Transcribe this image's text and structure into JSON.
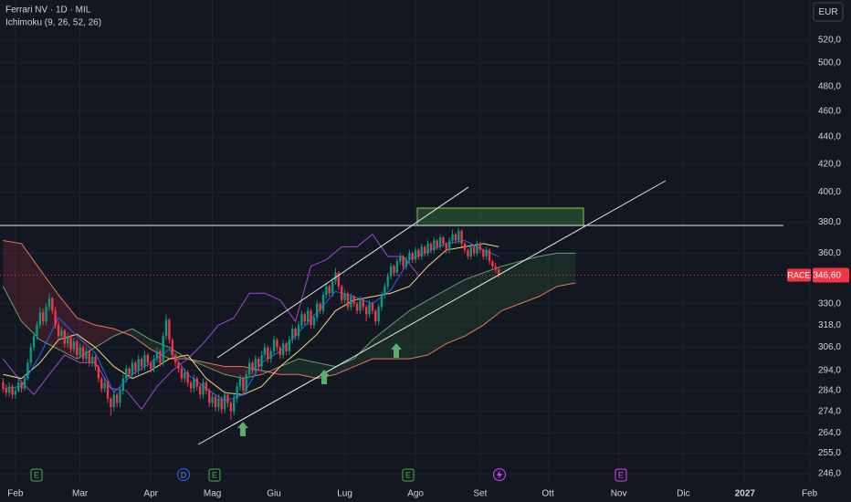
{
  "chart_data": {
    "type": "candlestick",
    "title": "Ferrari NV · 1D · MIL",
    "subtitle": "Ichimoku (9, 26, 52, 26)",
    "currency": "EUR",
    "symbol": "RACE",
    "last_price": {
      "value": 346.6,
      "label": "346,60"
    },
    "log": true,
    "grid": true,
    "up_color": "#089981",
    "down_color": "#f23645",
    "xlim": [
      -1,
      263
    ],
    "ylim": [
      241.8,
      557.4
    ],
    "xticks": [
      {
        "value": 4,
        "label": "Feb"
      },
      {
        "value": 25,
        "label": "Mar"
      },
      {
        "value": 48,
        "label": "Apr"
      },
      {
        "value": 68,
        "label": "Mag"
      },
      {
        "value": 88,
        "label": "Giu"
      },
      {
        "value": 111,
        "label": "Lug"
      },
      {
        "value": 134,
        "label": "Ago"
      },
      {
        "value": 155,
        "label": "Set"
      },
      {
        "value": 177,
        "label": "Ott"
      },
      {
        "value": 200,
        "label": "Nov"
      },
      {
        "value": 221,
        "label": "Dic"
      },
      {
        "value": 241,
        "label": "2027"
      },
      {
        "value": 262,
        "label": "Feb"
      }
    ],
    "yticks": [
      {
        "value": 520,
        "label": "520,0"
      },
      {
        "value": 500,
        "label": "500,0"
      },
      {
        "value": 480,
        "label": "480,0"
      },
      {
        "value": 460,
        "label": "460,0"
      },
      {
        "value": 440,
        "label": "440,0"
      },
      {
        "value": 420,
        "label": "420,0"
      },
      {
        "value": 400,
        "label": "400,0"
      },
      {
        "value": 380,
        "label": "380,0"
      },
      {
        "value": 360,
        "label": "360,0"
      },
      {
        "value": 330,
        "label": "330,0"
      },
      {
        "value": 318,
        "label": "318,0"
      },
      {
        "value": 306,
        "label": "306,0"
      },
      {
        "value": 294,
        "label": "294,0"
      },
      {
        "value": 284,
        "label": "284,0"
      },
      {
        "value": 274,
        "label": "274,0"
      },
      {
        "value": 264,
        "label": "264,0"
      },
      {
        "value": 255,
        "label": "255,0"
      },
      {
        "value": 246,
        "label": "246,0"
      }
    ],
    "events": [
      "E",
      "D",
      "E",
      "E",
      "E"
    ],
    "candles": [
      [
        288,
        290,
        283,
        285
      ],
      [
        285,
        287,
        281,
        283
      ],
      [
        283,
        288,
        281,
        286
      ],
      [
        286,
        287,
        280,
        282
      ],
      [
        282,
        286,
        280,
        284
      ],
      [
        284,
        290,
        283,
        288
      ],
      [
        288,
        289,
        283,
        285
      ],
      [
        285,
        292,
        284,
        290
      ],
      [
        290,
        300,
        289,
        298
      ],
      [
        298,
        308,
        296,
        306
      ],
      [
        306,
        314,
        304,
        312
      ],
      [
        312,
        320,
        310,
        318
      ],
      [
        318,
        328,
        316,
        325
      ],
      [
        325,
        327,
        318,
        320
      ],
      [
        320,
        330,
        318,
        328
      ],
      [
        328,
        336,
        326,
        333
      ],
      [
        333,
        334,
        324,
        326
      ],
      [
        326,
        328,
        316,
        318
      ],
      [
        318,
        320,
        310,
        312
      ],
      [
        312,
        317,
        310,
        315
      ],
      [
        315,
        316,
        306,
        308
      ],
      [
        308,
        314,
        306,
        312
      ],
      [
        312,
        313,
        303,
        305
      ],
      [
        305,
        311,
        303,
        309
      ],
      [
        309,
        310,
        300,
        302
      ],
      [
        302,
        308,
        300,
        306
      ],
      [
        306,
        307,
        298,
        300
      ],
      [
        300,
        306,
        298,
        304
      ],
      [
        304,
        305,
        296,
        298
      ],
      [
        298,
        303,
        296,
        301
      ],
      [
        301,
        302,
        294,
        296
      ],
      [
        296,
        297,
        288,
        290
      ],
      [
        290,
        291,
        283,
        285
      ],
      [
        285,
        290,
        283,
        288
      ],
      [
        288,
        289,
        278,
        280
      ],
      [
        280,
        281,
        272,
        276
      ],
      [
        276,
        284,
        274,
        282
      ],
      [
        282,
        283,
        276,
        278
      ],
      [
        278,
        286,
        276,
        284
      ],
      [
        284,
        292,
        282,
        290
      ],
      [
        290,
        297,
        288,
        295
      ],
      [
        295,
        296,
        290,
        292
      ],
      [
        292,
        300,
        290,
        298
      ],
      [
        298,
        299,
        292,
        294
      ],
      [
        294,
        302,
        292,
        300
      ],
      [
        300,
        301,
        294,
        296
      ],
      [
        296,
        304,
        294,
        302
      ],
      [
        302,
        303,
        296,
        298
      ],
      [
        298,
        299,
        293,
        295
      ],
      [
        295,
        302,
        293,
        300
      ],
      [
        300,
        306,
        298,
        304
      ],
      [
        304,
        305,
        296,
        298
      ],
      [
        298,
        314,
        296,
        312
      ],
      [
        312,
        324,
        310,
        321
      ],
      [
        321,
        322,
        308,
        310
      ],
      [
        310,
        311,
        300,
        302
      ],
      [
        302,
        303,
        296,
        298
      ],
      [
        298,
        299,
        293,
        295
      ],
      [
        295,
        296,
        288,
        290
      ],
      [
        290,
        295,
        288,
        293
      ],
      [
        293,
        294,
        286,
        288
      ],
      [
        288,
        289,
        283,
        285
      ],
      [
        285,
        292,
        283,
        290
      ],
      [
        290,
        291,
        284,
        286
      ],
      [
        286,
        287,
        280,
        282
      ],
      [
        282,
        290,
        280,
        288
      ],
      [
        288,
        289,
        282,
        284
      ],
      [
        284,
        285,
        276,
        278
      ],
      [
        278,
        283,
        276,
        281
      ],
      [
        281,
        282,
        274,
        276
      ],
      [
        276,
        282,
        274,
        280
      ],
      [
        280,
        281,
        273,
        275
      ],
      [
        275,
        284,
        273,
        282
      ],
      [
        282,
        283,
        276,
        278
      ],
      [
        278,
        279,
        270,
        274
      ],
      [
        274,
        282,
        272,
        280
      ],
      [
        280,
        288,
        278,
        286
      ],
      [
        286,
        292,
        284,
        290
      ],
      [
        290,
        291,
        282,
        284
      ],
      [
        284,
        294,
        282,
        292
      ],
      [
        292,
        300,
        290,
        298
      ],
      [
        298,
        299,
        292,
        294
      ],
      [
        294,
        302,
        292,
        300
      ],
      [
        300,
        301,
        294,
        296
      ],
      [
        296,
        304,
        294,
        302
      ],
      [
        302,
        308,
        300,
        306
      ],
      [
        306,
        307,
        298,
        300
      ],
      [
        300,
        306,
        298,
        304
      ],
      [
        304,
        312,
        302,
        310
      ],
      [
        310,
        311,
        304,
        306
      ],
      [
        306,
        307,
        300,
        302
      ],
      [
        302,
        310,
        300,
        308
      ],
      [
        308,
        309,
        302,
        304
      ],
      [
        304,
        312,
        302,
        310
      ],
      [
        310,
        318,
        308,
        316
      ],
      [
        316,
        317,
        310,
        312
      ],
      [
        312,
        320,
        310,
        318
      ],
      [
        318,
        326,
        316,
        324
      ],
      [
        324,
        325,
        318,
        320
      ],
      [
        320,
        328,
        318,
        326
      ],
      [
        326,
        327,
        316,
        318
      ],
      [
        318,
        324,
        316,
        322
      ],
      [
        322,
        332,
        320,
        330
      ],
      [
        330,
        331,
        324,
        326
      ],
      [
        326,
        337,
        324,
        335
      ],
      [
        335,
        342,
        333,
        340
      ],
      [
        340,
        341,
        334,
        336
      ],
      [
        336,
        345,
        334,
        343
      ],
      [
        343,
        351,
        341,
        348
      ],
      [
        348,
        349,
        338,
        340
      ],
      [
        340,
        341,
        330,
        332
      ],
      [
        332,
        338,
        330,
        336
      ],
      [
        336,
        337,
        326,
        328
      ],
      [
        328,
        336,
        326,
        334
      ],
      [
        334,
        335,
        328,
        330
      ],
      [
        330,
        331,
        324,
        326
      ],
      [
        326,
        334,
        324,
        332
      ],
      [
        332,
        333,
        326,
        328
      ],
      [
        328,
        329,
        320,
        324
      ],
      [
        324,
        332,
        322,
        330
      ],
      [
        330,
        331,
        324,
        326
      ],
      [
        326,
        327,
        318,
        320
      ],
      [
        320,
        330,
        318,
        328
      ],
      [
        328,
        337,
        326,
        335
      ],
      [
        335,
        342,
        333,
        340
      ],
      [
        340,
        348,
        338,
        346
      ],
      [
        346,
        354,
        344,
        352
      ],
      [
        352,
        353,
        346,
        348
      ],
      [
        348,
        357,
        346,
        355
      ],
      [
        355,
        360,
        353,
        358
      ],
      [
        358,
        359,
        350,
        352
      ],
      [
        352,
        358,
        350,
        356
      ],
      [
        356,
        362,
        354,
        360
      ],
      [
        360,
        361,
        354,
        356
      ],
      [
        356,
        364,
        354,
        362
      ],
      [
        362,
        363,
        356,
        358
      ],
      [
        358,
        366,
        356,
        364
      ],
      [
        364,
        365,
        358,
        360
      ],
      [
        360,
        368,
        358,
        366
      ],
      [
        366,
        367,
        360,
        362
      ],
      [
        362,
        370,
        360,
        368
      ],
      [
        368,
        369,
        362,
        364
      ],
      [
        364,
        372,
        362,
        370
      ],
      [
        370,
        371,
        364,
        366
      ],
      [
        366,
        367,
        360,
        362
      ],
      [
        362,
        370,
        360,
        368
      ],
      [
        368,
        375,
        366,
        372
      ],
      [
        372,
        373,
        366,
        368
      ],
      [
        368,
        376,
        366,
        374
      ],
      [
        374,
        375,
        364,
        366
      ],
      [
        366,
        367,
        360,
        362
      ],
      [
        362,
        363,
        356,
        358
      ],
      [
        358,
        366,
        356,
        364
      ],
      [
        364,
        365,
        358,
        360
      ],
      [
        360,
        368,
        358,
        366
      ],
      [
        366,
        367,
        360,
        362
      ],
      [
        362,
        363,
        356,
        358
      ],
      [
        358,
        364,
        356,
        362
      ],
      [
        362,
        363,
        353,
        355
      ],
      [
        355,
        356,
        350,
        352
      ],
      [
        352,
        354,
        348,
        350
      ],
      [
        350,
        351,
        345,
        346.6
      ]
    ],
    "ichimoku": {
      "conversion": {
        "color": "#2962ff",
        "x": [
          0,
          6,
          12,
          18,
          24,
          30,
          36,
          42,
          48,
          54,
          60,
          66,
          72,
          78,
          84,
          90,
          96,
          102,
          108,
          114,
          120,
          126,
          132,
          138,
          144,
          150,
          156,
          161
        ],
        "values": [
          285,
          286,
          302,
          322,
          312,
          303,
          283,
          292,
          298,
          305,
          292,
          285,
          279,
          282,
          298,
          304,
          314,
          325,
          337,
          334,
          330,
          338,
          356,
          361,
          366,
          368,
          362,
          358
        ]
      },
      "base": {
        "color": "#f5d78a",
        "x": [
          0,
          6,
          12,
          18,
          24,
          30,
          36,
          42,
          48,
          54,
          60,
          66,
          72,
          78,
          84,
          90,
          96,
          102,
          108,
          114,
          120,
          126,
          132,
          138,
          144,
          150,
          156,
          161
        ],
        "values": [
          292,
          290,
          298,
          310,
          313,
          306,
          296,
          290,
          294,
          300,
          302,
          290,
          283,
          282,
          286,
          296,
          304,
          313,
          326,
          332,
          334,
          336,
          340,
          352,
          362,
          364,
          366,
          364
        ]
      },
      "lagging": {
        "color": "#9c4dcc",
        "x": [
          0,
          5,
          10,
          15,
          20,
          25,
          30,
          35,
          40,
          45,
          50,
          55,
          60,
          65,
          70,
          75,
          80,
          85,
          90,
          95,
          100,
          105,
          110,
          115,
          120,
          125,
          130,
          135
        ],
        "values": [
          300,
          290,
          282,
          292,
          302,
          298,
          298,
          285,
          284,
          275,
          286,
          294,
          300,
          308,
          318,
          322,
          336,
          336,
          332,
          320,
          352,
          356,
          364,
          364,
          372,
          358,
          358,
          346.6
        ]
      },
      "span_a": {
        "color": "#6b9e6e",
        "x": [
          0,
          6,
          12,
          18,
          24,
          30,
          36,
          42,
          48,
          54,
          60,
          66,
          72,
          78,
          84,
          90,
          96,
          102,
          108,
          114,
          120,
          126,
          132,
          138,
          144,
          150,
          156,
          162,
          168,
          174,
          180,
          186
        ],
        "values": [
          340,
          320,
          310,
          305,
          300,
          306,
          312,
          316,
          310,
          306,
          300,
          296,
          292,
          290,
          292,
          296,
          300,
          298,
          296,
          300,
          310,
          318,
          326,
          332,
          338,
          344,
          348,
          352,
          355,
          358,
          360,
          360
        ]
      },
      "span_b": {
        "color": "#e0785a",
        "x": [
          0,
          6,
          12,
          18,
          24,
          30,
          36,
          42,
          48,
          54,
          60,
          66,
          72,
          78,
          84,
          90,
          96,
          102,
          108,
          114,
          120,
          126,
          132,
          138,
          144,
          150,
          156,
          162,
          168,
          174,
          180,
          186
        ],
        "values": [
          368,
          366,
          350,
          335,
          322,
          318,
          316,
          312,
          305,
          300,
          300,
          298,
          296,
          296,
          294,
          292,
          292,
          290,
          292,
          296,
          300,
          300,
          300,
          302,
          308,
          312,
          318,
          326,
          330,
          334,
          340,
          342
        ]
      }
    }
  }
}
